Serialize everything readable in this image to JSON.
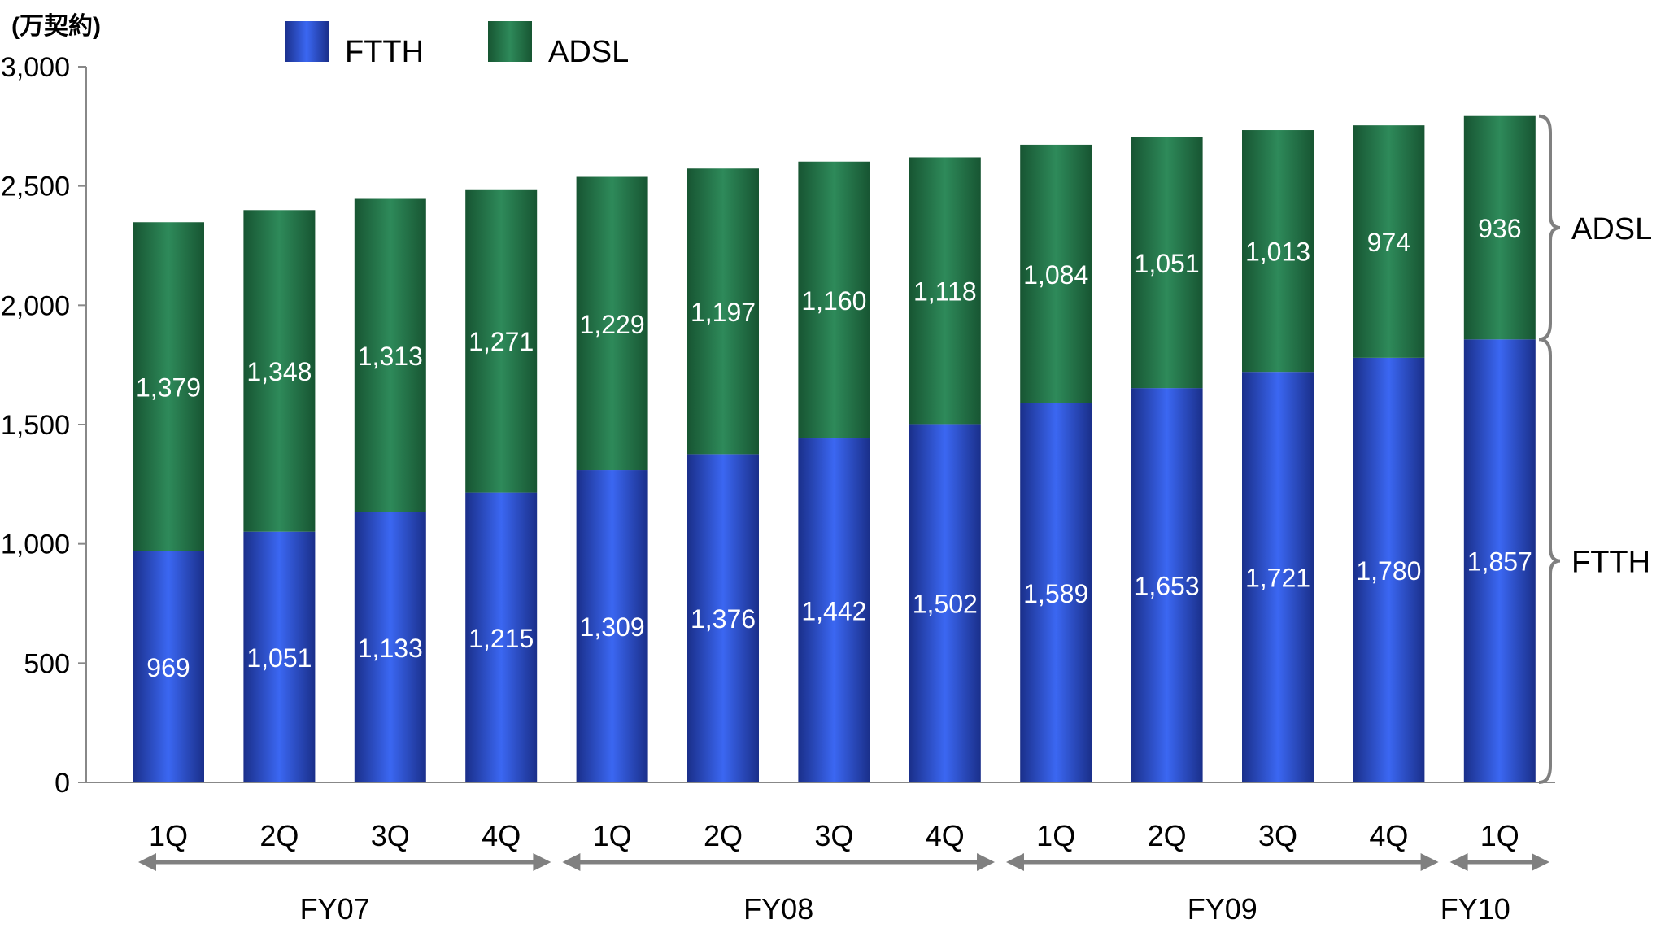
{
  "chart_data": {
    "type": "bar",
    "stacked": true,
    "unit_label": "(万契約)",
    "categories": [
      "1Q",
      "2Q",
      "3Q",
      "4Q",
      "1Q",
      "2Q",
      "3Q",
      "4Q",
      "1Q",
      "2Q",
      "3Q",
      "4Q",
      "1Q"
    ],
    "groups": [
      {
        "label": "FY07",
        "span": [
          0,
          3
        ]
      },
      {
        "label": "FY08",
        "span": [
          4,
          7
        ]
      },
      {
        "label": "FY09",
        "span": [
          8,
          11
        ]
      },
      {
        "label": "FY10",
        "span": [
          12,
          12
        ]
      }
    ],
    "series": [
      {
        "name": "FTTH",
        "color_top": "#3b67f2",
        "color_bottom": "#1a2f8a",
        "values": [
          969,
          1051,
          1133,
          1215,
          1309,
          1376,
          1442,
          1502,
          1589,
          1653,
          1721,
          1780,
          1857
        ],
        "labels": [
          "969",
          "1,051",
          "1,133",
          "1,215",
          "1,309",
          "1,376",
          "1,442",
          "1,502",
          "1,589",
          "1,653",
          "1,721",
          "1,780",
          "1,857"
        ]
      },
      {
        "name": "ADSL",
        "color_top": "#2e8a5a",
        "color_bottom": "#175532",
        "values": [
          1379,
          1348,
          1313,
          1271,
          1229,
          1197,
          1160,
          1118,
          1084,
          1051,
          1013,
          974,
          936
        ],
        "labels": [
          "1,379",
          "1,348",
          "1,313",
          "1,271",
          "1,229",
          "1,197",
          "1,160",
          "1,118",
          "1,084",
          "1,051",
          "1,013",
          "974",
          "936"
        ]
      }
    ],
    "ylim": [
      0,
      3000
    ],
    "yticks": [
      "0",
      "500",
      "1,000",
      "1,500",
      "2,000",
      "2,500",
      "3,000"
    ],
    "ytick_values": [
      0,
      500,
      1000,
      1500,
      2000,
      2500,
      3000
    ],
    "legend": {
      "position": "top-left",
      "entries": [
        "FTTH",
        "ADSL"
      ]
    },
    "brace_labels": [
      {
        "series": "ADSL",
        "text": "ADSL"
      },
      {
        "series": "FTTH",
        "text": "FTTH"
      }
    ],
    "grid": false
  }
}
